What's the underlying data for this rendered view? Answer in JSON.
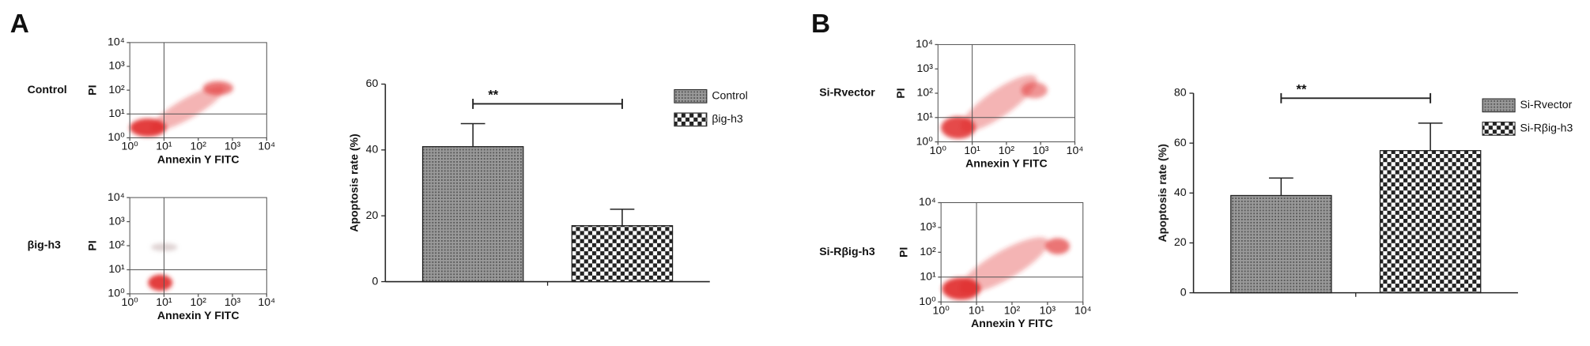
{
  "panel_labels": [
    "A",
    "B"
  ],
  "chart_data": [
    {
      "type": "flow",
      "label": "Control",
      "xlabel": "Annexin Y FITC",
      "ylabel": "PI",
      "log": true,
      "xlim": [
        1,
        10000
      ],
      "ylim": [
        1,
        10000
      ],
      "xticks": [
        {
          "value": 1,
          "label": "10⁰"
        },
        {
          "value": 10,
          "label": "10¹"
        },
        {
          "value": 100,
          "label": "10²"
        },
        {
          "value": 1000,
          "label": "10³"
        },
        {
          "value": 10000,
          "label": "10⁴"
        }
      ],
      "yticks": [
        {
          "value": 1,
          "label": "10⁰"
        },
        {
          "value": 10,
          "label": "10¹"
        },
        {
          "value": 100,
          "label": "10²"
        },
        {
          "value": 1000,
          "label": "10³"
        },
        {
          "value": 10000,
          "label": "10⁴"
        }
      ],
      "gate": {
        "x": 10,
        "y": 10
      },
      "color": "#e02a2a"
    },
    {
      "type": "flow",
      "label": "βig-h3",
      "xlabel": "Annexin Y FITC",
      "ylabel": "PI",
      "log": true,
      "xlim": [
        1,
        10000
      ],
      "ylim": [
        1,
        10000
      ],
      "xticks": [
        {
          "value": 1,
          "label": "10⁰"
        },
        {
          "value": 10,
          "label": "10¹"
        },
        {
          "value": 100,
          "label": "10²"
        },
        {
          "value": 1000,
          "label": "10³"
        },
        {
          "value": 10000,
          "label": "10⁴"
        }
      ],
      "yticks": [
        {
          "value": 1,
          "label": "10⁰"
        },
        {
          "value": 10,
          "label": "10¹"
        },
        {
          "value": 100,
          "label": "10²"
        },
        {
          "value": 1000,
          "label": "10³"
        },
        {
          "value": 10000,
          "label": "10⁴"
        }
      ],
      "gate": {
        "x": 10,
        "y": 10
      },
      "color": "#e02a2a"
    },
    {
      "type": "bar",
      "ylabel": "Apoptosis rate (%)",
      "categories": [
        "Control",
        "βig-h3"
      ],
      "values": [
        41,
        17
      ],
      "errors": [
        7,
        5
      ],
      "patterns": [
        "dense",
        "checker"
      ],
      "ylim": [
        0,
        60
      ],
      "yticks": [
        0,
        20,
        40,
        60
      ],
      "annotation": {
        "text": "**",
        "y": 54
      },
      "legend": "upper right"
    },
    {
      "type": "flow",
      "label": "Si-Rvector",
      "xlabel": "Annexin Y FITC",
      "ylabel": "PI",
      "log": true,
      "xlim": [
        1,
        10000
      ],
      "ylim": [
        1,
        10000
      ],
      "xticks": [
        {
          "value": 1,
          "label": "10⁰"
        },
        {
          "value": 10,
          "label": "10¹"
        },
        {
          "value": 100,
          "label": "10²"
        },
        {
          "value": 1000,
          "label": "10³"
        },
        {
          "value": 10000,
          "label": "10⁴"
        }
      ],
      "yticks": [
        {
          "value": 1,
          "label": "10⁰"
        },
        {
          "value": 10,
          "label": "10¹"
        },
        {
          "value": 100,
          "label": "10²"
        },
        {
          "value": 1000,
          "label": "10³"
        },
        {
          "value": 10000,
          "label": "10⁴"
        }
      ],
      "gate": {
        "x": 10,
        "y": 10
      },
      "color": "#e02a2a"
    },
    {
      "type": "flow",
      "label": "Si-Rβig-h3",
      "xlabel": "Annexin Y FITC",
      "ylabel": "PI",
      "log": true,
      "xlim": [
        1,
        10000
      ],
      "ylim": [
        1,
        10000
      ],
      "xticks": [
        {
          "value": 1,
          "label": "10⁰"
        },
        {
          "value": 10,
          "label": "10¹"
        },
        {
          "value": 100,
          "label": "10²"
        },
        {
          "value": 1000,
          "label": "10³"
        },
        {
          "value": 10000,
          "label": "10⁴"
        }
      ],
      "yticks": [
        {
          "value": 1,
          "label": "10⁰"
        },
        {
          "value": 10,
          "label": "10¹"
        },
        {
          "value": 100,
          "label": "10²"
        },
        {
          "value": 1000,
          "label": "10³"
        },
        {
          "value": 10000,
          "label": "10⁴"
        }
      ],
      "gate": {
        "x": 10,
        "y": 10
      },
      "color": "#e02a2a"
    },
    {
      "type": "bar",
      "ylabel": "Apoptosis rate (%)",
      "categories": [
        "Si-Rvector",
        "Si-Rβig-h3"
      ],
      "values": [
        39,
        57
      ],
      "errors": [
        7,
        11
      ],
      "patterns": [
        "dense",
        "checker"
      ],
      "ylim": [
        0,
        80
      ],
      "yticks": [
        0,
        20,
        40,
        60,
        80
      ],
      "annotation": {
        "text": "**",
        "y": 78
      },
      "legend": "upper right"
    }
  ]
}
